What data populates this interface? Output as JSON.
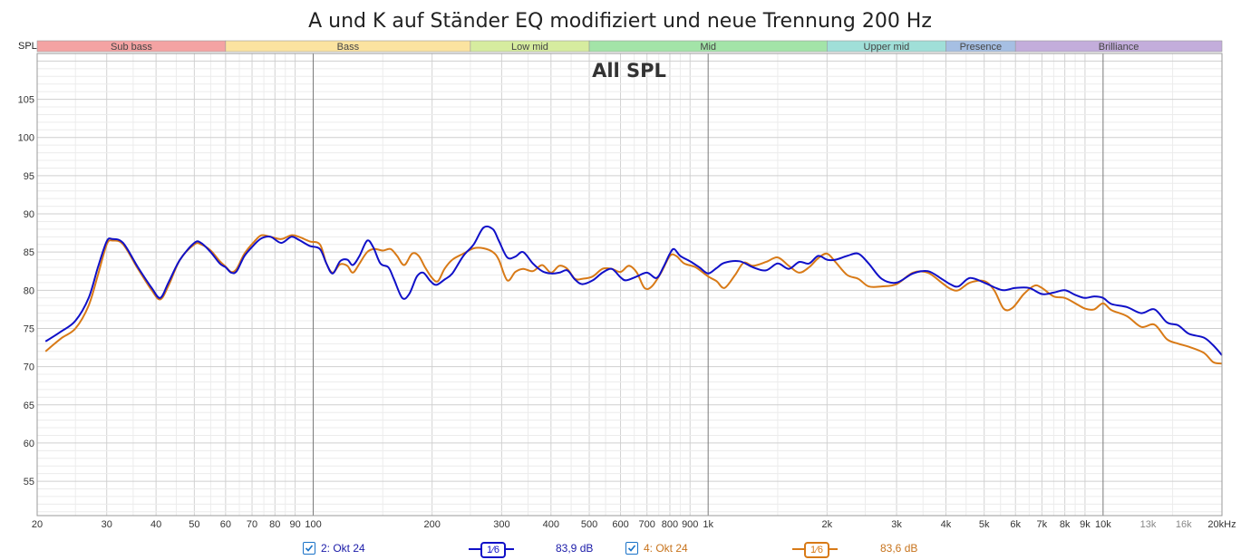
{
  "chart_data": {
    "type": "line",
    "title": "A und K auf Ständer EQ modifiziert und neue Trennung 200 Hz",
    "inner_title": "All SPL",
    "ylabel": "SPL",
    "xunit": "kHz",
    "xscale": "log",
    "xlim": [
      20,
      20000
    ],
    "ylim": [
      50.5,
      111
    ],
    "yticks": [
      55,
      60,
      65,
      70,
      75,
      80,
      85,
      90,
      95,
      100,
      105
    ],
    "xticks": [
      {
        "v": 20,
        "l": "20"
      },
      {
        "v": 30,
        "l": "30"
      },
      {
        "v": 40,
        "l": "40"
      },
      {
        "v": 50,
        "l": "50"
      },
      {
        "v": 60,
        "l": "60"
      },
      {
        "v": 70,
        "l": "70"
      },
      {
        "v": 80,
        "l": "80"
      },
      {
        "v": 90,
        "l": "90"
      },
      {
        "v": 100,
        "l": "100"
      },
      {
        "v": 200,
        "l": "200"
      },
      {
        "v": 300,
        "l": "300"
      },
      {
        "v": 400,
        "l": "400"
      },
      {
        "v": 500,
        "l": "500"
      },
      {
        "v": 600,
        "l": "600"
      },
      {
        "v": 700,
        "l": "700"
      },
      {
        "v": 800,
        "l": "800"
      },
      {
        "v": 900,
        "l": "900"
      },
      {
        "v": 1000,
        "l": "1k"
      },
      {
        "v": 2000,
        "l": "2k"
      },
      {
        "v": 3000,
        "l": "3k"
      },
      {
        "v": 4000,
        "l": "4k"
      },
      {
        "v": 5000,
        "l": "5k"
      },
      {
        "v": 6000,
        "l": "6k"
      },
      {
        "v": 7000,
        "l": "7k"
      },
      {
        "v": 8000,
        "l": "8k"
      },
      {
        "v": 9000,
        "l": "9k"
      },
      {
        "v": 10000,
        "l": "10k"
      },
      {
        "v": 13000,
        "l": "13k"
      },
      {
        "v": 16000,
        "l": "16k"
      },
      {
        "v": 20000,
        "l": "20kHz"
      }
    ],
    "bands": [
      {
        "name": "Sub bass",
        "from": 20,
        "to": 60,
        "color": "#f4a3a3"
      },
      {
        "name": "Bass",
        "from": 60,
        "to": 250,
        "color": "#fbe3a0"
      },
      {
        "name": "Low mid",
        "from": 250,
        "to": 500,
        "color": "#d6ec9f"
      },
      {
        "name": "Mid",
        "from": 500,
        "to": 2000,
        "color": "#a3e4a8"
      },
      {
        "name": "Upper mid",
        "from": 2000,
        "to": 4000,
        "color": "#a0dfd8"
      },
      {
        "name": "Presence",
        "from": 4000,
        "to": 6000,
        "color": "#a6bfe3"
      },
      {
        "name": "Brilliance",
        "from": 6000,
        "to": 20000,
        "color": "#c3addb"
      }
    ],
    "series": [
      {
        "name": "2: Okt 24",
        "color": "#1010c8",
        "level": "83,9 dB",
        "points": [
          [
            21,
            73.3
          ],
          [
            23,
            74.6
          ],
          [
            25,
            76
          ],
          [
            27,
            79
          ],
          [
            28.5,
            83
          ],
          [
            30,
            86.4
          ],
          [
            31,
            86.7
          ],
          [
            33,
            86.2
          ],
          [
            36,
            83
          ],
          [
            39,
            80.3
          ],
          [
            41,
            79
          ],
          [
            43,
            81
          ],
          [
            46,
            84
          ],
          [
            50,
            86.2
          ],
          [
            52,
            86.2
          ],
          [
            55,
            85
          ],
          [
            58,
            83.5
          ],
          [
            60,
            83
          ],
          [
            62,
            82.3
          ],
          [
            64,
            82.5
          ],
          [
            67,
            84.5
          ],
          [
            71,
            86
          ],
          [
            74,
            86.8
          ],
          [
            78,
            87
          ],
          [
            83,
            86.2
          ],
          [
            88,
            87
          ],
          [
            92,
            86.6
          ],
          [
            98,
            85.8
          ],
          [
            104,
            85.4
          ],
          [
            108,
            83.5
          ],
          [
            112,
            82.2
          ],
          [
            117,
            83.8
          ],
          [
            122,
            84
          ],
          [
            126,
            83.3
          ],
          [
            131,
            84.5
          ],
          [
            137,
            86.5
          ],
          [
            142,
            85.6
          ],
          [
            148,
            83.5
          ],
          [
            155,
            83
          ],
          [
            160,
            81.5
          ],
          [
            168,
            79
          ],
          [
            175,
            79.5
          ],
          [
            183,
            81.8
          ],
          [
            190,
            82.3
          ],
          [
            198,
            81.2
          ],
          [
            205,
            80.7
          ],
          [
            215,
            81.4
          ],
          [
            225,
            82.2
          ],
          [
            240,
            84.5
          ],
          [
            255,
            86
          ],
          [
            270,
            88.2
          ],
          [
            285,
            88
          ],
          [
            295,
            86.5
          ],
          [
            310,
            84.3
          ],
          [
            325,
            84.4
          ],
          [
            340,
            85
          ],
          [
            360,
            83.5
          ],
          [
            380,
            82.5
          ],
          [
            400,
            82.2
          ],
          [
            420,
            82.3
          ],
          [
            440,
            82.6
          ],
          [
            460,
            81.4
          ],
          [
            480,
            80.8
          ],
          [
            510,
            81.3
          ],
          [
            540,
            82.3
          ],
          [
            570,
            82.8
          ],
          [
            600,
            81.7
          ],
          [
            620,
            81.3
          ],
          [
            660,
            81.8
          ],
          [
            700,
            82.3
          ],
          [
            740,
            81.6
          ],
          [
            770,
            83
          ],
          [
            800,
            84.8
          ],
          [
            820,
            85.4
          ],
          [
            850,
            84.5
          ],
          [
            900,
            83.8
          ],
          [
            950,
            83
          ],
          [
            1000,
            82.2
          ],
          [
            1050,
            82.9
          ],
          [
            1100,
            83.6
          ],
          [
            1200,
            83.8
          ],
          [
            1300,
            83
          ],
          [
            1400,
            82.6
          ],
          [
            1500,
            83.5
          ],
          [
            1600,
            82.8
          ],
          [
            1700,
            83.7
          ],
          [
            1800,
            83.5
          ],
          [
            1900,
            84.5
          ],
          [
            2000,
            84
          ],
          [
            2100,
            84
          ],
          [
            2250,
            84.5
          ],
          [
            2400,
            84.8
          ],
          [
            2550,
            83.5
          ],
          [
            2750,
            81.5
          ],
          [
            3000,
            81
          ],
          [
            3300,
            82.2
          ],
          [
            3600,
            82.5
          ],
          [
            3900,
            81.5
          ],
          [
            4100,
            80.8
          ],
          [
            4300,
            80.5
          ],
          [
            4600,
            81.6
          ],
          [
            5000,
            81
          ],
          [
            5300,
            80.4
          ],
          [
            5600,
            80
          ],
          [
            6000,
            80.3
          ],
          [
            6500,
            80.3
          ],
          [
            7000,
            79.5
          ],
          [
            7500,
            79.7
          ],
          [
            8000,
            80
          ],
          [
            8500,
            79.4
          ],
          [
            9000,
            79
          ],
          [
            9500,
            79.2
          ],
          [
            10000,
            79
          ],
          [
            10500,
            78.2
          ],
          [
            11500,
            77.8
          ],
          [
            12500,
            77
          ],
          [
            13500,
            77.5
          ],
          [
            14500,
            75.8
          ],
          [
            15500,
            75.4
          ],
          [
            16500,
            74.3
          ],
          [
            18000,
            73.8
          ],
          [
            19000,
            72.8
          ],
          [
            20000,
            71.5
          ]
        ]
      },
      {
        "name": "4: Okt 24",
        "color": "#d87a17",
        "level": "83,6 dB",
        "points": [
          [
            21,
            72
          ],
          [
            23,
            73.7
          ],
          [
            25,
            75
          ],
          [
            27,
            78
          ],
          [
            28.5,
            82
          ],
          [
            30,
            86
          ],
          [
            31,
            86.5
          ],
          [
            33,
            86
          ],
          [
            36,
            82.8
          ],
          [
            39,
            80
          ],
          [
            41,
            78.8
          ],
          [
            43,
            80.6
          ],
          [
            46,
            84
          ],
          [
            50,
            86
          ],
          [
            52,
            86
          ],
          [
            55,
            85.2
          ],
          [
            58,
            83.8
          ],
          [
            60,
            83.1
          ],
          [
            62,
            82.4
          ],
          [
            64,
            82.8
          ],
          [
            67,
            84.8
          ],
          [
            71,
            86.4
          ],
          [
            74,
            87.2
          ],
          [
            78,
            87
          ],
          [
            83,
            86.7
          ],
          [
            88,
            87.2
          ],
          [
            92,
            87
          ],
          [
            98,
            86.4
          ],
          [
            104,
            86
          ],
          [
            108,
            83.5
          ],
          [
            112,
            82.3
          ],
          [
            117,
            83.4
          ],
          [
            122,
            83.2
          ],
          [
            126,
            82.3
          ],
          [
            131,
            83.5
          ],
          [
            137,
            85
          ],
          [
            143,
            85.4
          ],
          [
            150,
            85.2
          ],
          [
            157,
            85.4
          ],
          [
            163,
            84.5
          ],
          [
            170,
            83.3
          ],
          [
            178,
            84.8
          ],
          [
            185,
            84.5
          ],
          [
            192,
            83
          ],
          [
            200,
            81.6
          ],
          [
            207,
            81.2
          ],
          [
            215,
            82.8
          ],
          [
            225,
            84
          ],
          [
            240,
            84.8
          ],
          [
            255,
            85.5
          ],
          [
            270,
            85.5
          ],
          [
            285,
            85
          ],
          [
            295,
            84
          ],
          [
            310,
            81.3
          ],
          [
            325,
            82.4
          ],
          [
            340,
            82.8
          ],
          [
            360,
            82.5
          ],
          [
            380,
            83.3
          ],
          [
            400,
            82.3
          ],
          [
            420,
            83.2
          ],
          [
            440,
            82.8
          ],
          [
            460,
            81.5
          ],
          [
            480,
            81.5
          ],
          [
            510,
            81.8
          ],
          [
            540,
            82.8
          ],
          [
            570,
            82.8
          ],
          [
            600,
            82.4
          ],
          [
            630,
            83.2
          ],
          [
            660,
            82.3
          ],
          [
            690,
            80.3
          ],
          [
            720,
            80.5
          ],
          [
            760,
            82.3
          ],
          [
            800,
            84.5
          ],
          [
            830,
            84.5
          ],
          [
            870,
            83.5
          ],
          [
            930,
            83
          ],
          [
            1000,
            81.8
          ],
          [
            1050,
            81.2
          ],
          [
            1100,
            80.3
          ],
          [
            1170,
            82
          ],
          [
            1230,
            83.6
          ],
          [
            1300,
            83.2
          ],
          [
            1400,
            83.7
          ],
          [
            1500,
            84.3
          ],
          [
            1600,
            83.2
          ],
          [
            1700,
            82.3
          ],
          [
            1800,
            83
          ],
          [
            1900,
            84.2
          ],
          [
            2000,
            84.8
          ],
          [
            2100,
            83.7
          ],
          [
            2250,
            82
          ],
          [
            2400,
            81.5
          ],
          [
            2550,
            80.5
          ],
          [
            2750,
            80.5
          ],
          [
            3000,
            80.8
          ],
          [
            3300,
            82.3
          ],
          [
            3600,
            82.3
          ],
          [
            3900,
            81
          ],
          [
            4100,
            80.2
          ],
          [
            4300,
            80
          ],
          [
            4600,
            81
          ],
          [
            5000,
            81.2
          ],
          [
            5300,
            80
          ],
          [
            5600,
            77.6
          ],
          [
            5900,
            77.7
          ],
          [
            6300,
            79.5
          ],
          [
            6700,
            80.6
          ],
          [
            7000,
            80.3
          ],
          [
            7500,
            79.2
          ],
          [
            8000,
            79
          ],
          [
            8500,
            78.3
          ],
          [
            9000,
            77.6
          ],
          [
            9500,
            77.5
          ],
          [
            10000,
            78.3
          ],
          [
            10500,
            77.4
          ],
          [
            11500,
            76.6
          ],
          [
            12500,
            75.2
          ],
          [
            13500,
            75.5
          ],
          [
            14500,
            73.6
          ],
          [
            15500,
            73
          ],
          [
            16500,
            72.6
          ],
          [
            18000,
            71.8
          ],
          [
            19000,
            70.6
          ],
          [
            20000,
            70.4
          ]
        ]
      }
    ]
  },
  "legend": {
    "item1_label": "2: Okt 24",
    "item1_level": "83,9 dB",
    "item2_label": "4: Okt 24",
    "item2_level": "83,6 dB",
    "smoothing_num": "1",
    "smoothing_den": "6"
  }
}
